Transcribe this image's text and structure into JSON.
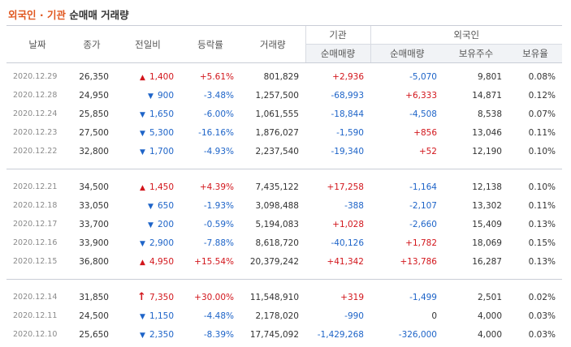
{
  "title": {
    "part1": "외국인 · 기관",
    "part2": "순매매 거래량"
  },
  "headers": {
    "date": "날짜",
    "close": "종가",
    "change": "전일비",
    "rate": "등락률",
    "volume": "거래량",
    "inst_group": "기관",
    "inst_net": "순매매량",
    "foreign_group": "외국인",
    "foreign_net": "순매매량",
    "foreign_shares": "보유주수",
    "foreign_ratio": "보유율"
  },
  "groups": [
    {
      "rows": [
        {
          "date": "2020.12.29",
          "close": "26,350",
          "dir": "up",
          "change": "1,400",
          "rate": "+5.61%",
          "volume": "801,829",
          "inst": "+2,936",
          "foreign": "-5,070",
          "shares": "9,801",
          "ratio": "0.08%"
        },
        {
          "date": "2020.12.28",
          "close": "24,950",
          "dir": "down",
          "change": "900",
          "rate": "-3.48%",
          "volume": "1,257,500",
          "inst": "-68,993",
          "foreign": "+6,333",
          "shares": "14,871",
          "ratio": "0.12%"
        },
        {
          "date": "2020.12.24",
          "close": "25,850",
          "dir": "down",
          "change": "1,650",
          "rate": "-6.00%",
          "volume": "1,061,555",
          "inst": "-18,844",
          "foreign": "-4,508",
          "shares": "8,538",
          "ratio": "0.07%"
        },
        {
          "date": "2020.12.23",
          "close": "27,500",
          "dir": "down",
          "change": "5,300",
          "rate": "-16.16%",
          "volume": "1,876,027",
          "inst": "-1,590",
          "foreign": "+856",
          "shares": "13,046",
          "ratio": "0.11%"
        },
        {
          "date": "2020.12.22",
          "close": "32,800",
          "dir": "down",
          "change": "1,700",
          "rate": "-4.93%",
          "volume": "2,237,540",
          "inst": "-19,340",
          "foreign": "+52",
          "shares": "12,190",
          "ratio": "0.10%"
        }
      ]
    },
    {
      "rows": [
        {
          "date": "2020.12.21",
          "close": "34,500",
          "dir": "up",
          "change": "1,450",
          "rate": "+4.39%",
          "volume": "7,435,122",
          "inst": "+17,258",
          "foreign": "-1,164",
          "shares": "12,138",
          "ratio": "0.10%"
        },
        {
          "date": "2020.12.18",
          "close": "33,050",
          "dir": "down",
          "change": "650",
          "rate": "-1.93%",
          "volume": "3,098,488",
          "inst": "-388",
          "foreign": "-2,107",
          "shares": "13,302",
          "ratio": "0.11%"
        },
        {
          "date": "2020.12.17",
          "close": "33,700",
          "dir": "down",
          "change": "200",
          "rate": "-0.59%",
          "volume": "5,194,083",
          "inst": "+1,028",
          "foreign": "-2,660",
          "shares": "15,409",
          "ratio": "0.13%"
        },
        {
          "date": "2020.12.16",
          "close": "33,900",
          "dir": "down",
          "change": "2,900",
          "rate": "-7.88%",
          "volume": "8,618,720",
          "inst": "-40,126",
          "foreign": "+1,782",
          "shares": "18,069",
          "ratio": "0.15%"
        },
        {
          "date": "2020.12.15",
          "close": "36,800",
          "dir": "up",
          "change": "4,950",
          "rate": "+15.54%",
          "volume": "20,379,242",
          "inst": "+41,342",
          "foreign": "+13,786",
          "shares": "16,287",
          "ratio": "0.13%"
        }
      ]
    },
    {
      "rows": [
        {
          "date": "2020.12.14",
          "close": "31,850",
          "dir": "upper",
          "change": "7,350",
          "rate": "+30.00%",
          "volume": "11,548,910",
          "inst": "+319",
          "foreign": "-1,499",
          "shares": "2,501",
          "ratio": "0.02%"
        },
        {
          "date": "2020.12.11",
          "close": "24,500",
          "dir": "down",
          "change": "1,150",
          "rate": "-4.48%",
          "volume": "2,178,020",
          "inst": "-990",
          "foreign": "0",
          "shares": "4,000",
          "ratio": "0.03%"
        },
        {
          "date": "2020.12.10",
          "close": "25,650",
          "dir": "down",
          "change": "2,350",
          "rate": "-8.39%",
          "volume": "17,745,092",
          "inst": "-1,429,268",
          "foreign": "-326,000",
          "shares": "4,000",
          "ratio": "0.03%"
        }
      ]
    }
  ],
  "colors": {
    "up": "#d2161c",
    "down": "#1e64c8",
    "title_accent": "#e0561e"
  }
}
